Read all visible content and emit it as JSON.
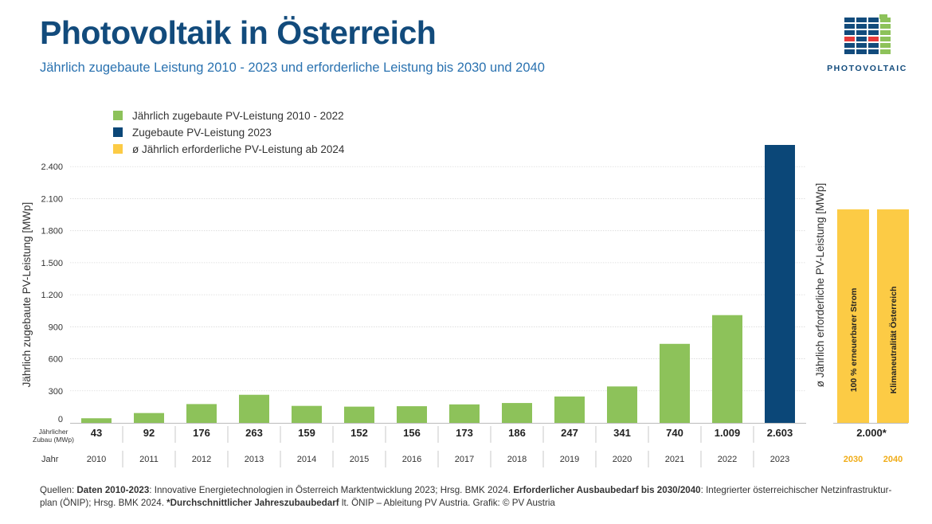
{
  "header": {
    "title": "Photovoltaik in Österreich",
    "subtitle": "Jährlich zugebaute Leistung 2010 - 2023 und erforderliche Leistung bis 2030 und 2040"
  },
  "logo": {
    "text": "PHOTOVOLTAIC"
  },
  "colors": {
    "green": "#8dc25a",
    "blue": "#0b4778",
    "yellow": "#fccb45",
    "title": "#124b7c"
  },
  "legend": [
    {
      "label": "Jährlich zugebaute PV-Leistung 2010 - 2022",
      "color": "#8dc25a"
    },
    {
      "label": "Zugebaute PV-Leistung 2023",
      "color": "#0b4778"
    },
    {
      "label": "ø Jährlich erforderliche PV-Leistung ab 2024",
      "color": "#fccb45"
    }
  ],
  "chart_data": {
    "type": "bar",
    "ylabel": "Jährlich zugebaute PV-Leistung [MWp]",
    "ylabel_right": "ø Jährlich erforderliche PV-Leistung [MWp]",
    "ylim": [
      0,
      2600
    ],
    "yticks": [
      0,
      300,
      600,
      900,
      1200,
      1500,
      1800,
      2100,
      2400
    ],
    "ytick_labels": [
      "0",
      "300",
      "600",
      "900",
      "1.200",
      "1.500",
      "1.800",
      "2.100",
      "2.400"
    ],
    "grid": true,
    "row_label_values": "Jährlicher Zubau (MWp)",
    "row_label_years": "Jahr",
    "historic": {
      "years": [
        "2010",
        "2011",
        "2012",
        "2013",
        "2014",
        "2015",
        "2016",
        "2017",
        "2018",
        "2019",
        "2020",
        "2021",
        "2022",
        "2023"
      ],
      "values": [
        43,
        92,
        176,
        263,
        159,
        152,
        156,
        173,
        186,
        247,
        341,
        740,
        1009,
        2603
      ],
      "value_labels": [
        "43",
        "92",
        "176",
        "263",
        "159",
        "152",
        "156",
        "173",
        "186",
        "247",
        "341",
        "740",
        "1.009",
        "2.603"
      ],
      "colors": [
        "#8dc25a",
        "#8dc25a",
        "#8dc25a",
        "#8dc25a",
        "#8dc25a",
        "#8dc25a",
        "#8dc25a",
        "#8dc25a",
        "#8dc25a",
        "#8dc25a",
        "#8dc25a",
        "#8dc25a",
        "#8dc25a",
        "#0b4778"
      ]
    },
    "required": {
      "years": [
        "2030",
        "2040"
      ],
      "values": [
        2000,
        2000
      ],
      "value_label": "2.000*",
      "bar_labels": [
        "100 % erneuerbarer Strom",
        "Klimaneutralität Österreich"
      ],
      "color": "#fccb45"
    }
  },
  "footer": {
    "parts": [
      {
        "text": "Quellen: ",
        "bold": false
      },
      {
        "text": "Daten 2010-2023",
        "bold": true
      },
      {
        "text": ": Innovative Energietechnologien in Österreich Marktentwicklung 2023; Hrsg. BMK 2024. ",
        "bold": false
      },
      {
        "text": "Erforderlicher Ausbaubedarf bis 2030/2040",
        "bold": true
      },
      {
        "text": ": Integrierter österreichischer Netzinfrastruktur-plan (ÖNIP); Hrsg. BMK 2024. ",
        "bold": false
      },
      {
        "text": "*Durchschnittlicher Jahreszubaubedarf",
        "bold": true
      },
      {
        "text": " lt. ÖNIP – Ableitung PV Austria. Grafik: © PV Austria",
        "bold": false
      }
    ]
  }
}
